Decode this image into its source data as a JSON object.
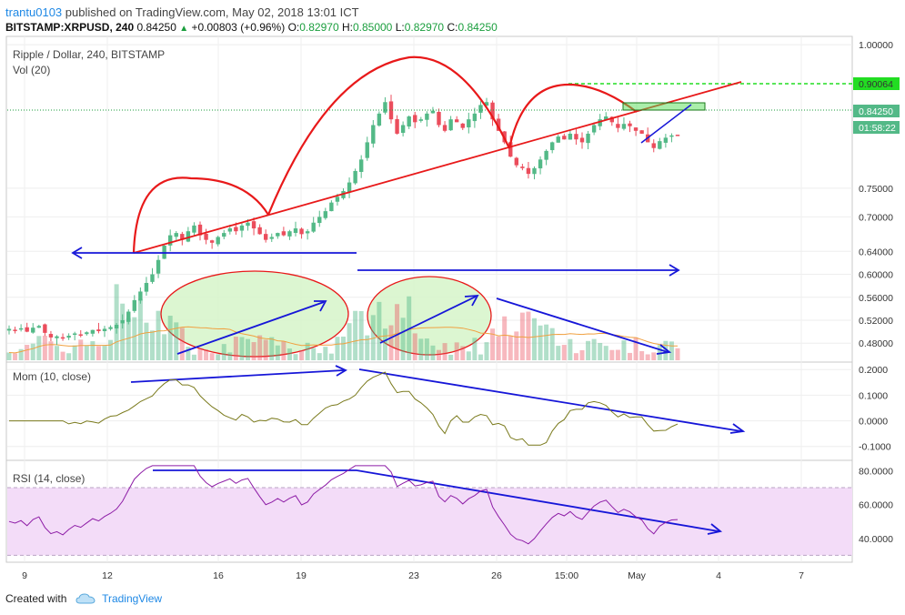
{
  "header": {
    "user": "trantu0103",
    "published": "published on TradingView.com, May 02, 2018 13:01 ICT",
    "symbol": "BITSTAMP:XRPUSD, 240",
    "last": "0.84250",
    "change": "+0.00803 (+0.96%)",
    "o_label": "O:",
    "o": "0.82970",
    "h_label": "H:",
    "h": "0.85000",
    "l_label": "L:",
    "l": "0.82970",
    "c_label": "C:",
    "c": "0.84250"
  },
  "panes": {
    "price_title": "Ripple / Dollar, 240, BITSTAMP",
    "vol_title": "Vol (20)",
    "mom_title": "Mom (10, close)",
    "rsi_title": "RSI (14, close)"
  },
  "price_axis": {
    "ticks": [
      "1.00000",
      "0.90064",
      "0.84250",
      "01:58:22",
      "0.75000",
      "0.70000",
      "0.64000",
      "0.60000",
      "0.56000",
      "0.52000",
      "0.48000"
    ],
    "labels": [
      {
        "text": "1.00000",
        "v": 1.0
      },
      {
        "text": "0.75000",
        "v": 0.75
      },
      {
        "text": "0.70000",
        "v": 0.7
      },
      {
        "text": "0.64000",
        "v": 0.64
      },
      {
        "text": "0.60000",
        "v": 0.6
      },
      {
        "text": "0.56000",
        "v": 0.56
      },
      {
        "text": "0.52000",
        "v": 0.52
      },
      {
        "text": "0.48000",
        "v": 0.48
      }
    ],
    "marker_green": "0.90064",
    "marker_last": "0.84250",
    "marker_timer": "01:58:22"
  },
  "mom_axis": {
    "labels": [
      {
        "text": "0.2000",
        "v": 0.2
      },
      {
        "text": "0.1000",
        "v": 0.1
      },
      {
        "text": "0.0000",
        "v": 0.0
      },
      {
        "text": "-0.1000",
        "v": -0.1
      }
    ]
  },
  "rsi_axis": {
    "labels": [
      {
        "text": "80.0000",
        "v": 80
      },
      {
        "text": "60.0000",
        "v": 60
      },
      {
        "text": "40.0000",
        "v": 40
      }
    ]
  },
  "x_axis": {
    "ticks": [
      "9",
      "12",
      "16",
      "19",
      "23",
      "26",
      "15:00",
      "May",
      "4",
      "7"
    ]
  },
  "colors": {
    "up": "#53b987",
    "down": "#eb4d5c",
    "drawing_red": "#e8191a",
    "drawing_blue": "#1616d8",
    "green_dash": "#22dd22",
    "mom_line": "#7a7a1c",
    "rsi_line": "#8d1ca6",
    "rsi_band": "#f3dcf8",
    "highlight_green": "#d6f5c9"
  },
  "chart_data": {
    "type": "candlestick",
    "title": "Ripple / Dollar, 240, BITSTAMP",
    "ylim": [
      0.455,
      1.005
    ],
    "close_series": [
      0.505,
      0.503,
      0.506,
      0.5,
      0.507,
      0.51,
      0.498,
      0.49,
      0.492,
      0.488,
      0.493,
      0.497,
      0.495,
      0.499,
      0.503,
      0.501,
      0.505,
      0.508,
      0.512,
      0.52,
      0.535,
      0.555,
      0.57,
      0.585,
      0.6,
      0.625,
      0.65,
      0.668,
      0.672,
      0.66,
      0.675,
      0.685,
      0.668,
      0.66,
      0.655,
      0.665,
      0.672,
      0.68,
      0.675,
      0.685,
      0.69,
      0.68,
      0.67,
      0.66,
      0.665,
      0.672,
      0.668,
      0.675,
      0.68,
      0.67,
      0.675,
      0.69,
      0.7,
      0.71,
      0.725,
      0.735,
      0.745,
      0.76,
      0.78,
      0.8,
      0.83,
      0.86,
      0.88,
      0.9,
      0.87,
      0.845,
      0.86,
      0.875,
      0.865,
      0.87,
      0.88,
      0.885,
      0.86,
      0.85,
      0.87,
      0.865,
      0.855,
      0.87,
      0.88,
      0.895,
      0.9,
      0.87,
      0.85,
      0.83,
      0.805,
      0.79,
      0.785,
      0.775,
      0.785,
      0.8,
      0.815,
      0.83,
      0.84,
      0.835,
      0.845,
      0.835,
      0.83,
      0.845,
      0.86,
      0.87,
      0.875,
      0.865,
      0.855,
      0.862,
      0.858,
      0.85,
      0.845,
      0.83,
      0.82,
      0.832,
      0.838,
      0.842,
      0.8425
    ],
    "momentum": {
      "name": "Mom (10, close)",
      "ylim": [
        -0.14,
        0.215
      ]
    },
    "rsi": {
      "name": "RSI (14, close)",
      "ylim": [
        27,
        84
      ],
      "band": [
        30,
        70
      ]
    },
    "x_ticks": [
      "9",
      "12",
      "16",
      "19",
      "23",
      "26",
      "15:00",
      "May",
      "4",
      "7"
    ]
  },
  "footer": {
    "created": "Created with",
    "brand": "TradingView"
  }
}
